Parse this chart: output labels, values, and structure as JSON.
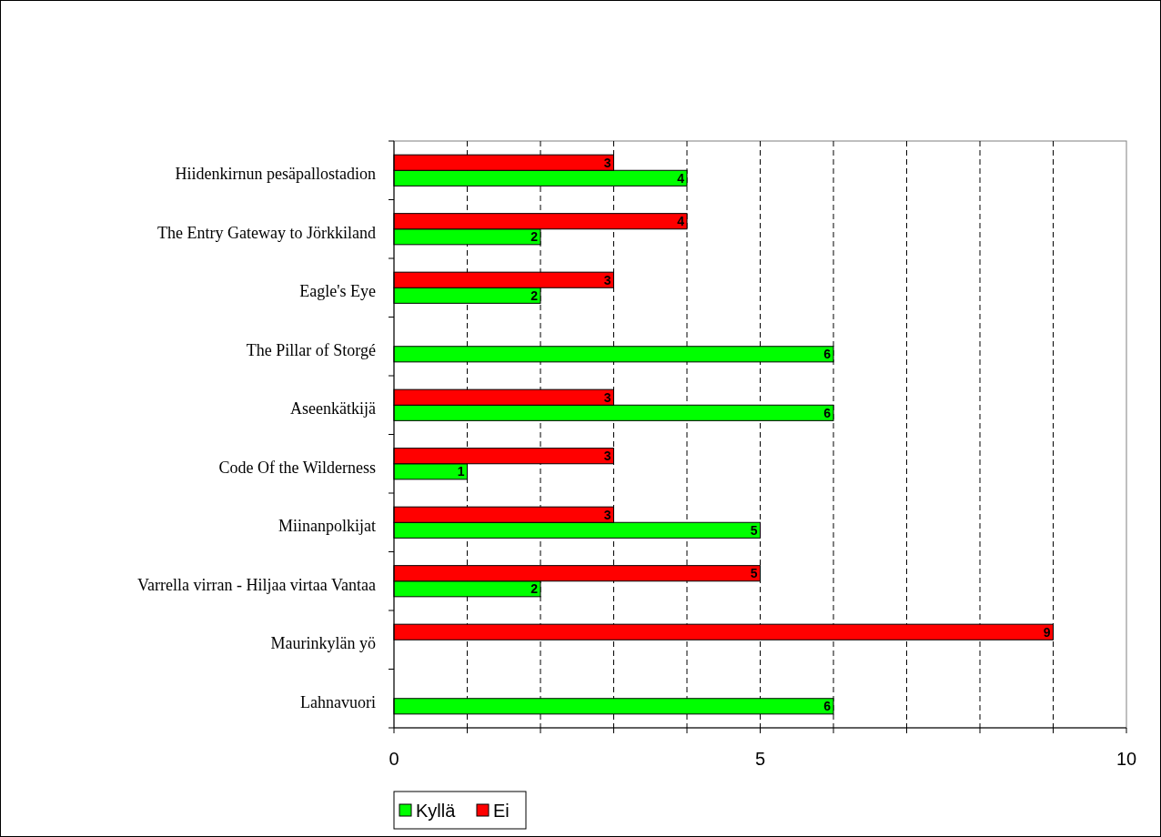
{
  "chart_data": {
    "type": "bar",
    "orientation": "horizontal",
    "categories": [
      "Hiidenkirnun pesäpallostadion",
      "The Entry Gateway to Jörkkiland",
      "Eagle's Eye",
      "The Pillar of Storgé",
      "Aseenkätkijä",
      "Code Of the Wilderness",
      "Miinanpolkijat",
      "Varrella virran - Hiljaa virtaa Vantaa",
      "Maurinkylän yö",
      "Lahnavuori"
    ],
    "series": [
      {
        "name": "Kyllä",
        "color": "#00ff00",
        "values": [
          4,
          2,
          2,
          6,
          6,
          1,
          5,
          2,
          null,
          6
        ]
      },
      {
        "name": "Ei",
        "color": "#ff0000",
        "values": [
          3,
          4,
          3,
          null,
          3,
          3,
          3,
          5,
          9,
          null
        ]
      }
    ],
    "xlim": [
      0,
      10
    ],
    "xticks": [
      0,
      {
        "value": 1,
        "label": null
      },
      {
        "value": 2,
        "label": null
      },
      {
        "value": 3,
        "label": null
      },
      {
        "value": 4,
        "label": null
      },
      5,
      {
        "value": 6,
        "label": null
      },
      {
        "value": 7,
        "label": null
      },
      {
        "value": 8,
        "label": null
      },
      {
        "value": 9,
        "label": null
      },
      10
    ],
    "grid": "x",
    "data_labels": true,
    "legend": "bottom left"
  }
}
